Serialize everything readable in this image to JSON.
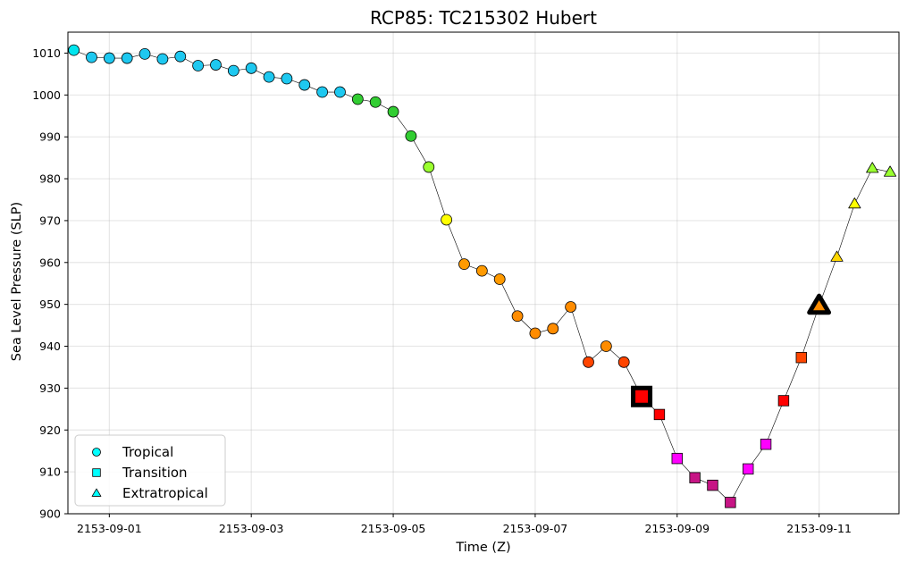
{
  "chart_data": {
    "type": "scatter",
    "title": "RCP85: TC215302 Hubert",
    "xlabel": "Time (Z)",
    "ylabel": "Sea Level Pressure (SLP)",
    "x_type": "datetime",
    "xlim": [
      "2153-08-31T10:00",
      "2153-09-12T03:00"
    ],
    "ylim": [
      900,
      1015
    ],
    "x_ticks": [
      "2153-09-01",
      "2153-09-03",
      "2153-09-05",
      "2153-09-07",
      "2153-09-09",
      "2153-09-11"
    ],
    "y_ticks": [
      900,
      910,
      920,
      930,
      940,
      950,
      960,
      970,
      980,
      990,
      1000,
      1010
    ],
    "grid": true,
    "legend": {
      "location": "lower-left",
      "entries": [
        {
          "label": "Tropical",
          "marker": "circle"
        },
        {
          "label": "Transition",
          "marker": "square"
        },
        {
          "label": "Extratropical",
          "marker": "triangle"
        }
      ],
      "color": "#00ffff"
    },
    "line_color": "#000000",
    "points": [
      {
        "t": "2153-08-31T12:00",
        "slp": 1010.7,
        "phase": "tropical",
        "color": "#00e5ee"
      },
      {
        "t": "2153-08-31T18:00",
        "slp": 1009.0,
        "phase": "tropical",
        "color": "#1ec8f0"
      },
      {
        "t": "2153-09-01T00:00",
        "slp": 1008.8,
        "phase": "tropical",
        "color": "#1ec8f0"
      },
      {
        "t": "2153-09-01T06:00",
        "slp": 1008.8,
        "phase": "tropical",
        "color": "#1ec8f0"
      },
      {
        "t": "2153-09-01T12:00",
        "slp": 1009.8,
        "phase": "tropical",
        "color": "#1ec8f0"
      },
      {
        "t": "2153-09-01T18:00",
        "slp": 1008.6,
        "phase": "tropical",
        "color": "#1ec8f0"
      },
      {
        "t": "2153-09-02T00:00",
        "slp": 1009.2,
        "phase": "tropical",
        "color": "#1ec8f0"
      },
      {
        "t": "2153-09-02T06:00",
        "slp": 1007.0,
        "phase": "tropical",
        "color": "#1ec8f0"
      },
      {
        "t": "2153-09-02T12:00",
        "slp": 1007.2,
        "phase": "tropical",
        "color": "#1ec8f0"
      },
      {
        "t": "2153-09-02T18:00",
        "slp": 1005.8,
        "phase": "tropical",
        "color": "#1ec8f0"
      },
      {
        "t": "2153-09-03T00:00",
        "slp": 1006.4,
        "phase": "tropical",
        "color": "#1ec8f0"
      },
      {
        "t": "2153-09-03T06:00",
        "slp": 1004.3,
        "phase": "tropical",
        "color": "#1ec8f0"
      },
      {
        "t": "2153-09-03T12:00",
        "slp": 1003.9,
        "phase": "tropical",
        "color": "#1ec8f0"
      },
      {
        "t": "2153-09-03T18:00",
        "slp": 1002.4,
        "phase": "tropical",
        "color": "#1ec8f0"
      },
      {
        "t": "2153-09-04T00:00",
        "slp": 1000.7,
        "phase": "tropical",
        "color": "#1ec8f0"
      },
      {
        "t": "2153-09-04T06:00",
        "slp": 1000.7,
        "phase": "tropical",
        "color": "#1ec8f0"
      },
      {
        "t": "2153-09-04T12:00",
        "slp": 999.0,
        "phase": "tropical",
        "color": "#32cd32"
      },
      {
        "t": "2153-09-04T18:00",
        "slp": 998.3,
        "phase": "tropical",
        "color": "#32cd32"
      },
      {
        "t": "2153-09-05T00:00",
        "slp": 996.0,
        "phase": "tropical",
        "color": "#32cd32"
      },
      {
        "t": "2153-09-05T06:00",
        "slp": 990.2,
        "phase": "tropical",
        "color": "#32cd32"
      },
      {
        "t": "2153-09-05T12:00",
        "slp": 982.8,
        "phase": "tropical",
        "color": "#9aff2f"
      },
      {
        "t": "2153-09-05T18:00",
        "slp": 970.2,
        "phase": "tropical",
        "color": "#ffff00"
      },
      {
        "t": "2153-09-06T00:00",
        "slp": 959.6,
        "phase": "tropical",
        "color": "#ff9a00"
      },
      {
        "t": "2153-09-06T06:00",
        "slp": 958.0,
        "phase": "tropical",
        "color": "#ff9a00"
      },
      {
        "t": "2153-09-06T12:00",
        "slp": 956.0,
        "phase": "tropical",
        "color": "#ff9a00"
      },
      {
        "t": "2153-09-06T18:00",
        "slp": 947.2,
        "phase": "tropical",
        "color": "#ff8c00"
      },
      {
        "t": "2153-09-07T00:00",
        "slp": 943.1,
        "phase": "tropical",
        "color": "#ff8c00"
      },
      {
        "t": "2153-09-07T06:00",
        "slp": 944.2,
        "phase": "tropical",
        "color": "#ff8c00"
      },
      {
        "t": "2153-09-07T12:00",
        "slp": 949.4,
        "phase": "tropical",
        "color": "#ff8c00"
      },
      {
        "t": "2153-09-07T18:00",
        "slp": 936.2,
        "phase": "tropical",
        "color": "#ff4500"
      },
      {
        "t": "2153-09-08T00:00",
        "slp": 940.0,
        "phase": "tropical",
        "color": "#ff8c00"
      },
      {
        "t": "2153-09-08T06:00",
        "slp": 936.2,
        "phase": "tropical",
        "color": "#ff4500"
      },
      {
        "t": "2153-09-08T12:00",
        "slp": 928.0,
        "phase": "transition",
        "color": "#ff0000",
        "highlight": true
      },
      {
        "t": "2153-09-08T18:00",
        "slp": 923.7,
        "phase": "transition",
        "color": "#ff0000"
      },
      {
        "t": "2153-09-09T00:00",
        "slp": 913.2,
        "phase": "transition",
        "color": "#ff00ff"
      },
      {
        "t": "2153-09-09T06:00",
        "slp": 908.6,
        "phase": "transition",
        "color": "#c71585"
      },
      {
        "t": "2153-09-09T12:00",
        "slp": 906.8,
        "phase": "transition",
        "color": "#c71585"
      },
      {
        "t": "2153-09-09T18:00",
        "slp": 902.7,
        "phase": "transition",
        "color": "#c71585"
      },
      {
        "t": "2153-09-10T00:00",
        "slp": 910.7,
        "phase": "transition",
        "color": "#ff00ff"
      },
      {
        "t": "2153-09-10T06:00",
        "slp": 916.6,
        "phase": "transition",
        "color": "#ff00ff"
      },
      {
        "t": "2153-09-10T12:00",
        "slp": 927.0,
        "phase": "transition",
        "color": "#ff0000"
      },
      {
        "t": "2153-09-10T18:00",
        "slp": 937.3,
        "phase": "transition",
        "color": "#ff4500"
      },
      {
        "t": "2153-09-11T00:00",
        "slp": 949.7,
        "phase": "extratropical",
        "color": "#ff8c00",
        "highlight": true
      },
      {
        "t": "2153-09-11T06:00",
        "slp": 961.3,
        "phase": "extratropical",
        "color": "#ffd700"
      },
      {
        "t": "2153-09-11T12:00",
        "slp": 974.0,
        "phase": "extratropical",
        "color": "#ffff00"
      },
      {
        "t": "2153-09-11T18:00",
        "slp": 982.5,
        "phase": "extratropical",
        "color": "#9aff2f"
      },
      {
        "t": "2153-09-12T00:00",
        "slp": 981.6,
        "phase": "extratropical",
        "color": "#9aff2f"
      }
    ]
  }
}
